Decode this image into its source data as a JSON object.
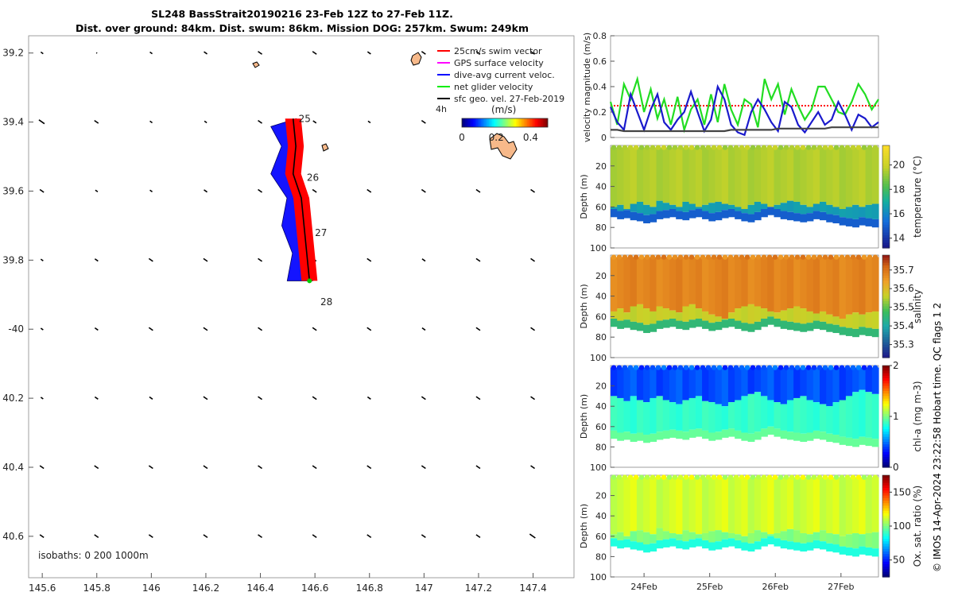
{
  "header": {
    "title_line1": "SL248 BassStrait20190216 23-Feb 12Z to 27-Feb 11Z.",
    "title_line2": "Dist. over ground: 84km. Dist. swum: 86km. Mission DOG: 257km. Swum: 249km"
  },
  "credit": "© IMOS 14-Apr-2024 23:22:58 Hobart time. QC flags 1  2",
  "chart_data": [
    {
      "type": "map",
      "xlim": [
        145.55,
        147.55
      ],
      "ylim": [
        -39.15,
        -40.72
      ],
      "x_ticks": [
        145.6,
        145.8,
        146,
        146.2,
        146.4,
        146.6,
        146.8,
        147,
        147.2,
        147.4
      ],
      "x_tick_labels": [
        "145.6",
        "145.8",
        "146",
        "146.2",
        "146.4",
        "146.6",
        "146.8",
        "147",
        "147.2",
        "147.4"
      ],
      "y_ticks": [
        -39.2,
        -39.4,
        -39.6,
        -39.8,
        -40,
        -40.2,
        -40.4,
        -40.6
      ],
      "y_tick_labels": [
        "39.2",
        "39.4",
        "39.6",
        "39.8",
        "-40",
        "40.2",
        "40.4",
        "40.6"
      ],
      "legend": {
        "items": [
          {
            "label": "25cm/s swim vector",
            "color": "#ff0000"
          },
          {
            "label": "GPS surface velocity",
            "color": "#ff00ff"
          },
          {
            "label": "dive-avg current veloc.",
            "color": "#0000ff"
          },
          {
            "label": "net glider velocity",
            "color": "#00ee00"
          },
          {
            "label": "sfc geo. vel. 27-Feb-2019",
            "color": "#000000"
          }
        ],
        "position": "top-right",
        "scale_label": "4h"
      },
      "colorbar": {
        "label": "(m/s)",
        "tick_labels": [
          "0",
          "0.2",
          "0.4"
        ],
        "range": [
          0,
          0.5
        ]
      },
      "track": [
        {
          "lon": 146.52,
          "lat": -39.39
        },
        {
          "lon": 146.53,
          "lat": -39.47
        },
        {
          "lon": 146.52,
          "lat": -39.55
        },
        {
          "lon": 146.55,
          "lat": -39.62
        },
        {
          "lon": 146.56,
          "lat": -39.7
        },
        {
          "lon": 146.57,
          "lat": -39.78
        },
        {
          "lon": 146.58,
          "lat": -39.86
        }
      ],
      "day_labels": [
        {
          "text": "25",
          "lon": 146.54,
          "lat": -39.4
        },
        {
          "text": "26",
          "lon": 146.57,
          "lat": -39.57
        },
        {
          "text": "27",
          "lon": 146.6,
          "lat": -39.73
        },
        {
          "text": "28",
          "lon": 146.62,
          "lat": -39.93
        }
      ],
      "geo_vectors": [
        {
          "lat": -39.2,
          "u": [
            0,
            -0.1,
            0,
            0.05,
            0.1,
            0.1,
            0.05,
            0.1,
            0.1,
            0.1
          ]
        },
        {
          "lat": -39.4,
          "u": [
            0.2,
            0.1,
            0,
            0,
            0.1,
            0.05,
            0,
            0.1,
            0.1,
            0.1
          ]
        },
        {
          "lat": -39.6,
          "u": [
            0.1,
            0,
            0,
            0.05,
            0.1,
            0.1,
            0.1,
            0.1,
            0.1,
            0.1
          ]
        },
        {
          "lat": -39.8,
          "u": [
            0,
            0.05,
            0.1,
            0.1,
            0.1,
            0.05,
            0.1,
            0.05,
            0.1,
            0.1
          ]
        },
        {
          "lat": -40.0,
          "u": [
            0,
            0.05,
            0.1,
            0.1,
            0.1,
            0.1,
            0.1,
            0.05,
            0.1,
            0.1
          ]
        },
        {
          "lat": -40.2,
          "u": [
            0,
            0.05,
            0.05,
            0.1,
            0.1,
            0.1,
            0.05,
            0.1,
            0.1,
            0.1
          ]
        },
        {
          "lat": -40.4,
          "u": [
            0.1,
            0.1,
            0.1,
            0.1,
            0.1,
            0.1,
            0.1,
            0.1,
            0.1,
            0.1
          ]
        },
        {
          "lat": -40.6,
          "u": [
            0.1,
            0.1,
            0.1,
            0.1,
            0.1,
            0.1,
            0.1,
            0.1,
            0.1,
            0.2
          ]
        }
      ],
      "footnote": "isobaths: 0   200  1000m"
    },
    {
      "type": "line",
      "ylabel": "velocity magnitude (m/s)",
      "ylim": [
        0,
        0.8
      ],
      "y_tick_labels": [
        "0",
        "0.2",
        "0.4",
        "0.6",
        "0.8"
      ],
      "xlim": [
        0,
        100
      ],
      "series": [
        {
          "key": "swim",
          "color": "#ff0000",
          "style": "dotted",
          "values": [
            0.25,
            0.25,
            0.25,
            0.25,
            0.25,
            0.25,
            0.25,
            0.25,
            0.25,
            0.25,
            0.25,
            0.25,
            0.25,
            0.25,
            0.25,
            0.25,
            0.25,
            0.25,
            0.25,
            0.25,
            0.25,
            0.25,
            0.25,
            0.25,
            0.25,
            0.25,
            0.25,
            0.25,
            0.25,
            0.25,
            0.25,
            0.25,
            0.25,
            0.25,
            0.25,
            0.25,
            0.25,
            0.25,
            0.25,
            0.25,
            0.25
          ]
        },
        {
          "key": "net",
          "color": "#22dd22",
          "values": [
            0.28,
            0.1,
            0.42,
            0.3,
            0.46,
            0.2,
            0.38,
            0.15,
            0.3,
            0.1,
            0.32,
            0.06,
            0.22,
            0.3,
            0.1,
            0.34,
            0.12,
            0.42,
            0.22,
            0.1,
            0.3,
            0.26,
            0.08,
            0.46,
            0.3,
            0.42,
            0.18,
            0.38,
            0.25,
            0.14,
            0.22,
            0.4,
            0.4,
            0.3,
            0.2,
            0.18,
            0.28,
            0.42,
            0.34,
            0.22,
            0.3
          ]
        },
        {
          "key": "current",
          "color": "#1a1acc",
          "values": [
            0.24,
            0.12,
            0.06,
            0.34,
            0.2,
            0.06,
            0.22,
            0.34,
            0.12,
            0.06,
            0.14,
            0.2,
            0.36,
            0.2,
            0.05,
            0.14,
            0.4,
            0.3,
            0.1,
            0.04,
            0.02,
            0.2,
            0.3,
            0.22,
            0.12,
            0.05,
            0.28,
            0.24,
            0.1,
            0.04,
            0.12,
            0.2,
            0.1,
            0.14,
            0.28,
            0.18,
            0.06,
            0.18,
            0.15,
            0.08,
            0.12
          ]
        },
        {
          "key": "geo",
          "color": "#444444",
          "values": [
            0.06,
            0.06,
            0.05,
            0.05,
            0.05,
            0.05,
            0.05,
            0.05,
            0.05,
            0.05,
            0.05,
            0.05,
            0.05,
            0.05,
            0.05,
            0.05,
            0.05,
            0.05,
            0.06,
            0.06,
            0.06,
            0.06,
            0.06,
            0.06,
            0.06,
            0.07,
            0.07,
            0.07,
            0.07,
            0.07,
            0.07,
            0.07,
            0.07,
            0.08,
            0.08,
            0.08,
            0.08,
            0.08,
            0.08,
            0.08,
            0.08
          ]
        }
      ]
    },
    {
      "type": "heatmap",
      "variable": "temperature",
      "colorbar_label": "temperature (°C)",
      "cbar_range": [
        13.2,
        21.6
      ],
      "cbar_ticks": [
        14,
        16,
        18,
        20
      ],
      "ylabel": "Depth (m)",
      "ylim": [
        100,
        0
      ],
      "y_tick_labels": [
        "20",
        "40",
        "60",
        "80",
        "100"
      ],
      "upper_value": 19.6,
      "lower_value": 16.5,
      "deep_value": 14.9,
      "mld": [
        60,
        58,
        62,
        57,
        55,
        58,
        60,
        54,
        56,
        58,
        60,
        55,
        57,
        60,
        58,
        56,
        55,
        57,
        58,
        60,
        62,
        58,
        55,
        57,
        60,
        58,
        56,
        54,
        55,
        58,
        60,
        57,
        55,
        58,
        60,
        62,
        60,
        58,
        60,
        58,
        57
      ],
      "bottom": [
        70,
        72,
        71,
        73,
        74,
        76,
        75,
        72,
        71,
        70,
        72,
        73,
        71,
        70,
        72,
        74,
        73,
        71,
        70,
        72,
        74,
        75,
        73,
        70,
        68,
        70,
        72,
        73,
        74,
        75,
        74,
        72,
        73,
        75,
        76,
        78,
        79,
        80,
        78,
        79,
        80
      ]
    },
    {
      "type": "heatmap",
      "variable": "salinity",
      "colorbar_label": "salinity",
      "cbar_range": [
        35.23,
        35.78
      ],
      "cbar_ticks": [
        35.3,
        35.4,
        35.5,
        35.6,
        35.7
      ],
      "ylabel": "Depth (m)",
      "ylim": [
        100,
        0
      ],
      "y_tick_labels": [
        "20",
        "40",
        "60",
        "80",
        "100"
      ],
      "upper_value": 35.68,
      "lower_value": 35.56,
      "deep_value": 35.45,
      "mld": [
        55,
        52,
        56,
        50,
        48,
        52,
        55,
        50,
        52,
        54,
        56,
        50,
        48,
        52,
        55,
        58,
        60,
        62,
        56,
        52,
        50,
        48,
        50,
        52,
        55,
        56,
        54,
        52,
        50,
        52,
        55,
        57,
        55,
        58,
        60,
        62,
        58,
        56,
        58,
        56,
        55
      ],
      "bottom": [
        70,
        72,
        71,
        73,
        74,
        76,
        75,
        72,
        71,
        70,
        72,
        73,
        71,
        70,
        72,
        74,
        73,
        71,
        70,
        72,
        74,
        75,
        73,
        70,
        68,
        70,
        72,
        73,
        74,
        75,
        74,
        72,
        73,
        75,
        76,
        78,
        79,
        80,
        78,
        79,
        80
      ]
    },
    {
      "type": "heatmap",
      "variable": "chl-a",
      "colorbar_label": "chl-a (mg m-3)",
      "cbar_range": [
        0,
        2
      ],
      "cbar_ticks": [
        0,
        1,
        2
      ],
      "ylabel": "Depth (m)",
      "ylim": [
        100,
        0
      ],
      "y_tick_labels": [
        "20",
        "40",
        "60",
        "80",
        "100"
      ],
      "upper_value": 0.4,
      "lower_value": 0.85,
      "deep_value": 0.95,
      "mld": [
        30,
        32,
        35,
        30,
        34,
        36,
        32,
        30,
        34,
        36,
        38,
        34,
        32,
        30,
        35,
        36,
        38,
        40,
        36,
        34,
        30,
        28,
        26,
        30,
        34,
        36,
        38,
        34,
        32,
        30,
        34,
        36,
        38,
        40,
        36,
        34,
        30,
        26,
        24,
        26,
        28
      ],
      "bottom": [
        72,
        74,
        73,
        75,
        74,
        76,
        75,
        73,
        72,
        71,
        72,
        73,
        71,
        70,
        72,
        74,
        73,
        71,
        70,
        72,
        74,
        75,
        73,
        70,
        68,
        70,
        72,
        73,
        74,
        75,
        74,
        72,
        73,
        75,
        76,
        78,
        79,
        80,
        78,
        79,
        80
      ]
    },
    {
      "type": "heatmap",
      "variable": "oxygen saturation",
      "colorbar_label": "Ox. sat. ratio (%)",
      "cbar_range": [
        25,
        175
      ],
      "cbar_ticks": [
        50,
        100,
        150
      ],
      "ylabel": "Depth (m)",
      "ylim": [
        100,
        0
      ],
      "y_tick_labels": [
        "20",
        "40",
        "60",
        "80",
        "100"
      ],
      "x_tick_labels": [
        "24Feb",
        "25Feb",
        "26Feb",
        "27Feb"
      ],
      "x_tick_positions": [
        12.5,
        37,
        61.5,
        86
      ],
      "upper_value": 112,
      "lower_value": 100,
      "deep_value": 86,
      "mld": [
        58,
        56,
        60,
        55,
        54,
        56,
        58,
        52,
        55,
        57,
        58,
        54,
        56,
        58,
        57,
        55,
        54,
        56,
        57,
        58,
        60,
        57,
        54,
        56,
        58,
        57,
        55,
        53,
        54,
        57,
        58,
        56,
        54,
        57,
        58,
        60,
        58,
        57,
        58,
        57,
        56
      ],
      "bottom": [
        70,
        72,
        71,
        73,
        74,
        76,
        75,
        72,
        71,
        70,
        72,
        73,
        71,
        70,
        72,
        74,
        73,
        71,
        70,
        72,
        74,
        75,
        73,
        70,
        68,
        70,
        72,
        73,
        74,
        75,
        74,
        72,
        73,
        75,
        76,
        78,
        79,
        80,
        78,
        79,
        80
      ]
    }
  ]
}
